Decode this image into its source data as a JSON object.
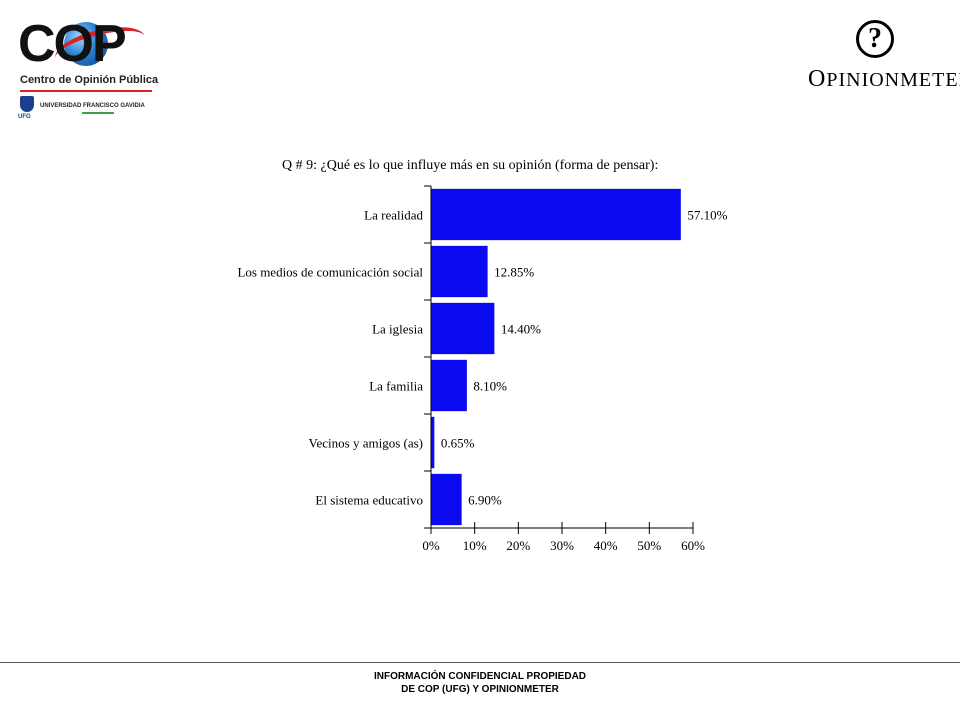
{
  "header": {
    "cop_logo_letters": "COP",
    "cop_subtitle": "Centro de Opinión Pública",
    "ufg_abbrev": "UFG",
    "ufg_name": "UNIVERSIDAD FRANCISCO GAVIDIA",
    "opinion_logo_mark": "?",
    "opinion_logo_initial": "O",
    "opinion_logo_rest": "PINIONMETER"
  },
  "chart_data": {
    "type": "bar",
    "orientation": "horizontal",
    "title": "Q # 9: ¿Qué es lo que influye más en su opinión (forma de pensar):",
    "categories": [
      "La realidad",
      "Los medios de comunicación social",
      "La iglesia",
      "La familia",
      "Vecinos y amigos (as)",
      "El sistema educativo"
    ],
    "values": [
      57.1,
      12.85,
      14.4,
      8.1,
      0.65,
      6.9
    ],
    "value_labels": [
      "57.10%",
      "12.85%",
      "14.40%",
      "8.10%",
      "0.65%",
      "6.90%"
    ],
    "x_ticks": [
      "0%",
      "10%",
      "20%",
      "30%",
      "40%",
      "50%",
      "60%"
    ],
    "xlim": [
      0,
      60
    ],
    "bar_color": "#0a0af0",
    "grid": false,
    "legend": false
  },
  "footer": {
    "line1": "INFORMACIÓN CONFIDENCIAL PROPIEDAD",
    "line2": "DE COP (UFG) Y OPINIONMETER"
  }
}
